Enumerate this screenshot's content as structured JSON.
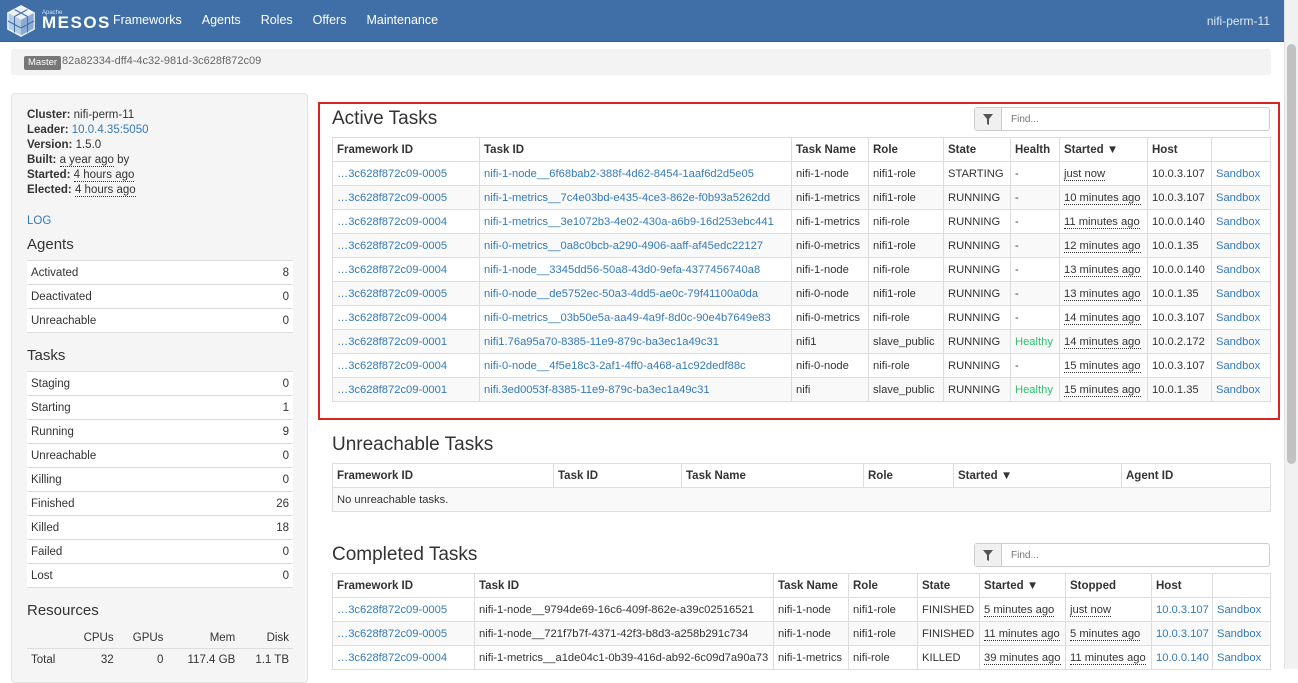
{
  "nav": {
    "logo_small": "Apache",
    "logo_text": "MESOS",
    "items": [
      "Frameworks",
      "Agents",
      "Roles",
      "Offers",
      "Maintenance"
    ],
    "cluster_name": "nifi-perm-11"
  },
  "master": {
    "label": "Master",
    "id": "82a82334-dff4-4c32-981d-3c628f872c09"
  },
  "sidebar": {
    "cluster_label": "Cluster:",
    "cluster_value": "nifi-perm-11",
    "leader_label": "Leader:",
    "leader_value": "10.0.4.35:5050",
    "version_label": "Version:",
    "version_value": "1.5.0",
    "built_label": "Built:",
    "built_value": "a year ago",
    "built_suffix": "by",
    "started_label": "Started:",
    "started_value": "4 hours ago",
    "elected_label": "Elected:",
    "elected_value": "4 hours ago",
    "log_link": "LOG",
    "agents_heading": "Agents",
    "agents": [
      {
        "label": "Activated",
        "value": "8"
      },
      {
        "label": "Deactivated",
        "value": "0"
      },
      {
        "label": "Unreachable",
        "value": "0"
      }
    ],
    "tasks_heading": "Tasks",
    "tasks": [
      {
        "label": "Staging",
        "value": "0"
      },
      {
        "label": "Starting",
        "value": "1"
      },
      {
        "label": "Running",
        "value": "9"
      },
      {
        "label": "Unreachable",
        "value": "0"
      },
      {
        "label": "Killing",
        "value": "0"
      },
      {
        "label": "Finished",
        "value": "26"
      },
      {
        "label": "Killed",
        "value": "18"
      },
      {
        "label": "Failed",
        "value": "0"
      },
      {
        "label": "Lost",
        "value": "0"
      }
    ],
    "resources_heading": "Resources",
    "resources_headers": [
      "",
      "CPUs",
      "GPUs",
      "Mem",
      "Disk"
    ],
    "resources_total": [
      "Total",
      "32",
      "0",
      "117.4 GB",
      "1.1 TB"
    ]
  },
  "active_tasks": {
    "title": "Active Tasks",
    "find_placeholder": "Find...",
    "headers": [
      "Framework ID",
      "Task ID",
      "Task Name",
      "Role",
      "State",
      "Health",
      "Started ▼",
      "Host",
      ""
    ],
    "rows": [
      {
        "fw": "…3c628f872c09-0005",
        "task": "nifi-1-node__6f68bab2-388f-4d62-8454-1aaf6d2d5e05",
        "name": "nifi-1-node",
        "role": "nifi1-role",
        "state": "STARTING",
        "health": "-",
        "started": "just now",
        "host": "10.0.3.107",
        "sandbox": "Sandbox"
      },
      {
        "fw": "…3c628f872c09-0005",
        "task": "nifi-1-metrics__7c4e03bd-e435-4ce3-862e-f0b93a5262dd",
        "name": "nifi-1-metrics",
        "role": "nifi1-role",
        "state": "RUNNING",
        "health": "-",
        "started": "10 minutes ago",
        "host": "10.0.3.107",
        "sandbox": "Sandbox"
      },
      {
        "fw": "…3c628f872c09-0004",
        "task": "nifi-1-metrics__3e1072b3-4e02-430a-a6b9-16d253ebc441",
        "name": "nifi-1-metrics",
        "role": "nifi-role",
        "state": "RUNNING",
        "health": "-",
        "started": "11 minutes ago",
        "host": "10.0.0.140",
        "sandbox": "Sandbox"
      },
      {
        "fw": "…3c628f872c09-0005",
        "task": "nifi-0-metrics__0a8c0bcb-a290-4906-aaff-af45edc22127",
        "name": "nifi-0-metrics",
        "role": "nifi1-role",
        "state": "RUNNING",
        "health": "-",
        "started": "12 minutes ago",
        "host": "10.0.1.35",
        "sandbox": "Sandbox"
      },
      {
        "fw": "…3c628f872c09-0004",
        "task": "nifi-1-node__3345dd56-50a8-43d0-9efa-4377456740a8",
        "name": "nifi-1-node",
        "role": "nifi-role",
        "state": "RUNNING",
        "health": "-",
        "started": "13 minutes ago",
        "host": "10.0.0.140",
        "sandbox": "Sandbox"
      },
      {
        "fw": "…3c628f872c09-0005",
        "task": "nifi-0-node__de5752ec-50a3-4dd5-ae0c-79f41100a0da",
        "name": "nifi-0-node",
        "role": "nifi1-role",
        "state": "RUNNING",
        "health": "-",
        "started": "13 minutes ago",
        "host": "10.0.1.35",
        "sandbox": "Sandbox"
      },
      {
        "fw": "…3c628f872c09-0004",
        "task": "nifi-0-metrics__03b50e5a-aa49-4a9f-8d0c-90e4b7649e83",
        "name": "nifi-0-metrics",
        "role": "nifi-role",
        "state": "RUNNING",
        "health": "-",
        "started": "14 minutes ago",
        "host": "10.0.3.107",
        "sandbox": "Sandbox"
      },
      {
        "fw": "…3c628f872c09-0001",
        "task": "nifi1.76a95a70-8385-11e9-879c-ba3ec1a49c31",
        "name": "nifi1",
        "role": "slave_public",
        "state": "RUNNING",
        "health": "Healthy",
        "started": "14 minutes ago",
        "host": "10.0.2.172",
        "sandbox": "Sandbox"
      },
      {
        "fw": "…3c628f872c09-0004",
        "task": "nifi-0-node__4f5e18c3-2af1-4ff0-a468-a1c92dedf88c",
        "name": "nifi-0-node",
        "role": "nifi-role",
        "state": "RUNNING",
        "health": "-",
        "started": "15 minutes ago",
        "host": "10.0.3.107",
        "sandbox": "Sandbox"
      },
      {
        "fw": "…3c628f872c09-0001",
        "task": "nifi.3ed0053f-8385-11e9-879c-ba3ec1a49c31",
        "name": "nifi",
        "role": "slave_public",
        "state": "RUNNING",
        "health": "Healthy",
        "started": "15 minutes ago",
        "host": "10.0.1.35",
        "sandbox": "Sandbox"
      }
    ]
  },
  "unreachable_tasks": {
    "title": "Unreachable Tasks",
    "headers": [
      "Framework ID",
      "Task ID",
      "Task Name",
      "Role",
      "Started ▼",
      "Agent ID"
    ],
    "empty_message": "No unreachable tasks."
  },
  "completed_tasks": {
    "title": "Completed Tasks",
    "find_placeholder": "Find...",
    "headers": [
      "Framework ID",
      "Task ID",
      "Task Name",
      "Role",
      "State",
      "Started ▼",
      "Stopped",
      "Host",
      ""
    ],
    "rows": [
      {
        "fw": "…3c628f872c09-0005",
        "task": "nifi-1-node__9794de69-16c6-409f-862e-a39c02516521",
        "name": "nifi-1-node",
        "role": "nifi1-role",
        "state": "FINISHED",
        "started": "5 minutes ago",
        "stopped": "just now",
        "host": "10.0.3.107",
        "sandbox": "Sandbox"
      },
      {
        "fw": "…3c628f872c09-0005",
        "task": "nifi-1-node__721f7b7f-4371-42f3-b8d3-a258b291c734",
        "name": "nifi-1-node",
        "role": "nifi1-role",
        "state": "FINISHED",
        "started": "11 minutes ago",
        "stopped": "5 minutes ago",
        "host": "10.0.3.107",
        "sandbox": "Sandbox"
      },
      {
        "fw": "…3c628f872c09-0004",
        "task": "nifi-1-metrics__a1de04c1-0b39-416d-ab92-6c09d7a90a73",
        "name": "nifi-1-metrics",
        "role": "nifi-role",
        "state": "KILLED",
        "started": "39 minutes ago",
        "stopped": "11 minutes ago",
        "host": "10.0.0.140",
        "sandbox": "Sandbox"
      }
    ]
  },
  "colors": {
    "navbar": "#3f6fa6",
    "link": "#337ab7",
    "healthy": "#2fbf6f",
    "highlight_border": "#d9251f"
  }
}
